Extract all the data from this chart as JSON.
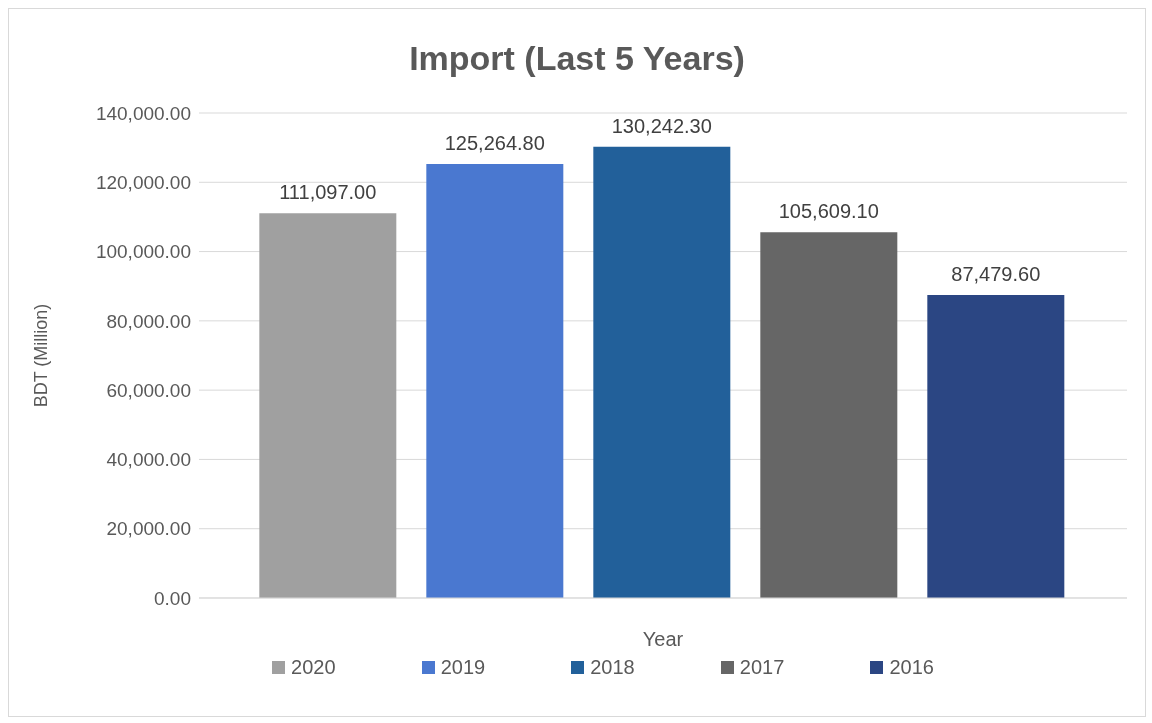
{
  "chart_data": {
    "type": "bar",
    "title": "Import (Last 5 Years)",
    "xlabel": "Year",
    "ylabel": "BDT (Million)",
    "categories": [
      null
    ],
    "series": [
      {
        "name": "2020",
        "color": "#a0a0a0",
        "values": [
          111097.0
        ],
        "value_labels": [
          "111,097.00"
        ]
      },
      {
        "name": "2019",
        "color": "#4a78d0",
        "values": [
          125264.8
        ],
        "value_labels": [
          "125,264.80"
        ]
      },
      {
        "name": "2018",
        "color": "#22609a",
        "values": [
          130242.3
        ],
        "value_labels": [
          "130,242.30"
        ]
      },
      {
        "name": "2017",
        "color": "#666666",
        "values": [
          105609.1
        ],
        "value_labels": [
          "105,609.10"
        ]
      },
      {
        "name": "2016",
        "color": "#2b4683",
        "values": [
          87479.6
        ],
        "value_labels": [
          "87,479.60"
        ]
      }
    ],
    "ylim": [
      0,
      140000
    ],
    "yticks": [
      {
        "value": 0,
        "label": "0.00"
      },
      {
        "value": 20000,
        "label": "20,000.00"
      },
      {
        "value": 40000,
        "label": "40,000.00"
      },
      {
        "value": 60000,
        "label": "60,000.00"
      },
      {
        "value": 80000,
        "label": "80,000.00"
      },
      {
        "value": 100000,
        "label": "100,000.00"
      },
      {
        "value": 120000,
        "label": "120,000.00"
      },
      {
        "value": 140000,
        "label": "140,000.00"
      }
    ],
    "grid": "y",
    "legend": "bottom"
  }
}
